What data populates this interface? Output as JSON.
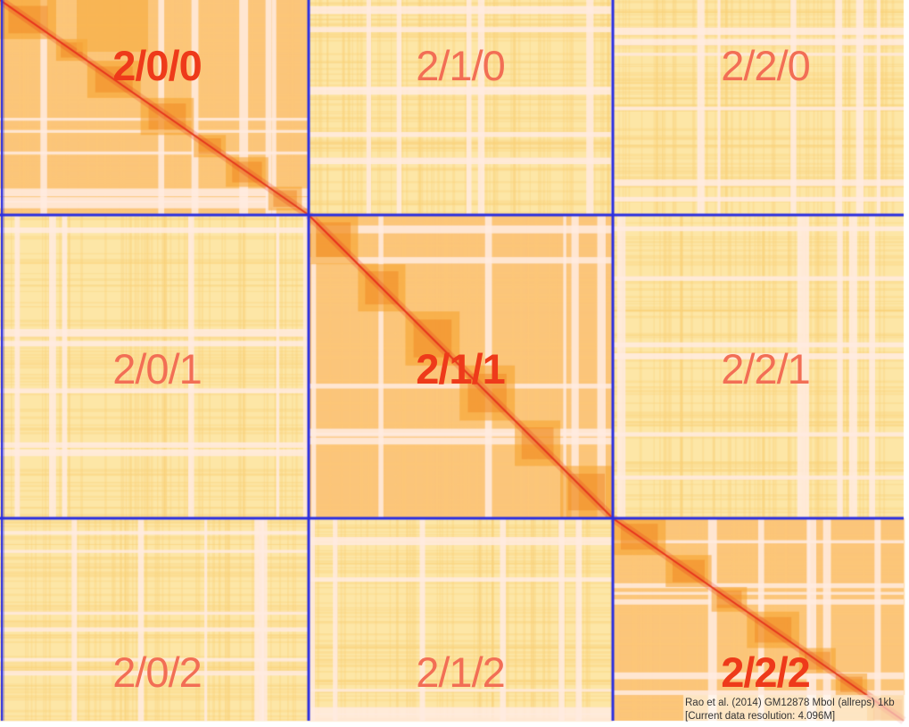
{
  "colors": {
    "grid_line": "#2a2ee0",
    "heat_low": "#fde3a0",
    "heat_mid": "#f8a64a",
    "heat_high": "#e8321c",
    "diag_label": "#ee3a1a",
    "offdiag_label": "#f26e55"
  },
  "tiles": [
    {
      "label": "2/0/0",
      "row": 0,
      "col": 0,
      "diagonal": true
    },
    {
      "label": "2/1/0",
      "row": 0,
      "col": 1,
      "diagonal": false
    },
    {
      "label": "2/2/0",
      "row": 0,
      "col": 2,
      "diagonal": false
    },
    {
      "label": "2/0/1",
      "row": 1,
      "col": 0,
      "diagonal": false
    },
    {
      "label": "2/1/1",
      "row": 1,
      "col": 1,
      "diagonal": true
    },
    {
      "label": "2/2/1",
      "row": 1,
      "col": 2,
      "diagonal": false
    },
    {
      "label": "2/0/2",
      "row": 2,
      "col": 0,
      "diagonal": false
    },
    {
      "label": "2/1/2",
      "row": 2,
      "col": 1,
      "diagonal": false
    },
    {
      "label": "2/2/2",
      "row": 2,
      "col": 2,
      "diagonal": true
    }
  ],
  "caption": {
    "line1": "Rao et al. (2014) GM12878 MboI (allreps) 1kb",
    "line2": "[Current data resolution: 4.096M]"
  }
}
